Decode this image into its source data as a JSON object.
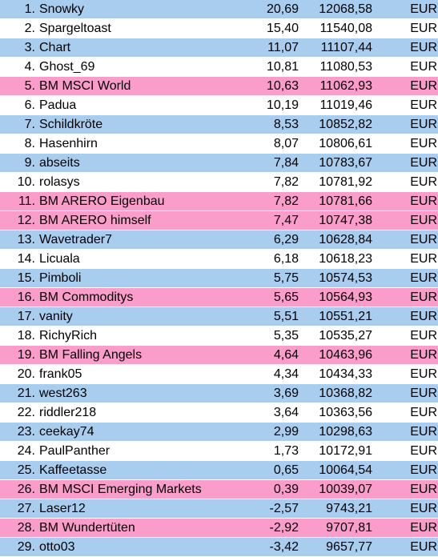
{
  "colors": {
    "blue": "#a8cdef",
    "white": "#ffffff",
    "pink": "#fa9dcb"
  },
  "rows": [
    {
      "rank": "1.",
      "name": "Snowky",
      "pct": "20,69",
      "value": "12068,58",
      "currency": "EUR",
      "color": "blue"
    },
    {
      "rank": "2.",
      "name": "Spargeltoast",
      "pct": "15,40",
      "value": "11540,08",
      "currency": "EUR",
      "color": "white"
    },
    {
      "rank": "3.",
      "name": "Chart",
      "pct": "11,07",
      "value": "11107,44",
      "currency": "EUR",
      "color": "blue"
    },
    {
      "rank": "4.",
      "name": "Ghost_69",
      "pct": "10,81",
      "value": "11080,53",
      "currency": "EUR",
      "color": "white"
    },
    {
      "rank": "5.",
      "name": "BM MSCI World",
      "pct": "10,63",
      "value": "11062,93",
      "currency": "EUR",
      "color": "pink"
    },
    {
      "rank": "6.",
      "name": "Padua",
      "pct": "10,19",
      "value": "11019,46",
      "currency": "EUR",
      "color": "white"
    },
    {
      "rank": "7.",
      "name": "Schildkröte",
      "pct": "8,53",
      "value": "10852,82",
      "currency": "EUR",
      "color": "blue"
    },
    {
      "rank": "8.",
      "name": "Hasenhirn",
      "pct": "8,07",
      "value": "10806,61",
      "currency": "EUR",
      "color": "white"
    },
    {
      "rank": "9.",
      "name": "abseits",
      "pct": "7,84",
      "value": "10783,67",
      "currency": "EUR",
      "color": "blue"
    },
    {
      "rank": "10.",
      "name": "rolasys",
      "pct": "7,82",
      "value": "10781,92",
      "currency": "EUR",
      "color": "white"
    },
    {
      "rank": "11.",
      "name": "BM ARERO Eigenbau",
      "pct": "7,82",
      "value": "10781,66",
      "currency": "EUR",
      "color": "pink"
    },
    {
      "rank": "12.",
      "name": "BM ARERO himself",
      "pct": "7,47",
      "value": "10747,38",
      "currency": "EUR",
      "color": "pink"
    },
    {
      "rank": "13.",
      "name": "Wavetrader7",
      "pct": "6,29",
      "value": "10628,84",
      "currency": "EUR",
      "color": "blue"
    },
    {
      "rank": "14.",
      "name": "Licuala",
      "pct": "6,18",
      "value": "10618,23",
      "currency": "EUR",
      "color": "white"
    },
    {
      "rank": "15.",
      "name": "Pimboli",
      "pct": "5,75",
      "value": "10574,53",
      "currency": "EUR",
      "color": "blue"
    },
    {
      "rank": "16.",
      "name": "BM Commoditys",
      "pct": "5,65",
      "value": "10564,93",
      "currency": "EUR",
      "color": "pink"
    },
    {
      "rank": "17.",
      "name": "vanity",
      "pct": "5,51",
      "value": "10551,21",
      "currency": "EUR",
      "color": "blue"
    },
    {
      "rank": "18.",
      "name": "RichyRich",
      "pct": "5,35",
      "value": "10535,27",
      "currency": "EUR",
      "color": "white"
    },
    {
      "rank": "19.",
      "name": "BM Falling Angels",
      "pct": "4,64",
      "value": "10463,96",
      "currency": "EUR",
      "color": "pink"
    },
    {
      "rank": "20.",
      "name": "frank05",
      "pct": "4,34",
      "value": "10434,33",
      "currency": "EUR",
      "color": "white"
    },
    {
      "rank": "21.",
      "name": "west263",
      "pct": "3,69",
      "value": "10368,82",
      "currency": "EUR",
      "color": "blue"
    },
    {
      "rank": "22.",
      "name": "riddler218",
      "pct": "3,64",
      "value": "10363,56",
      "currency": "EUR",
      "color": "white"
    },
    {
      "rank": "23.",
      "name": "ceekay74",
      "pct": "2,99",
      "value": "10298,63",
      "currency": "EUR",
      "color": "blue"
    },
    {
      "rank": "24.",
      "name": "PaulPanther",
      "pct": "1,73",
      "value": "10172,91",
      "currency": "EUR",
      "color": "white"
    },
    {
      "rank": "25.",
      "name": "Kaffeetasse",
      "pct": "0,65",
      "value": "10064,54",
      "currency": "EUR",
      "color": "blue"
    },
    {
      "rank": "26.",
      "name": "BM MSCI Emerging Markets",
      "pct": "0,39",
      "value": "10039,07",
      "currency": "EUR",
      "color": "pink"
    },
    {
      "rank": "27.",
      "name": "Laser12",
      "pct": "-2,57",
      "value": "9743,21",
      "currency": "EUR",
      "color": "blue"
    },
    {
      "rank": "28.",
      "name": "BM Wundertüten",
      "pct": "-2,92",
      "value": "9707,81",
      "currency": "EUR",
      "color": "pink"
    },
    {
      "rank": "29.",
      "name": "otto03",
      "pct": "-3,42",
      "value": "9657,77",
      "currency": "EUR",
      "color": "blue"
    }
  ]
}
